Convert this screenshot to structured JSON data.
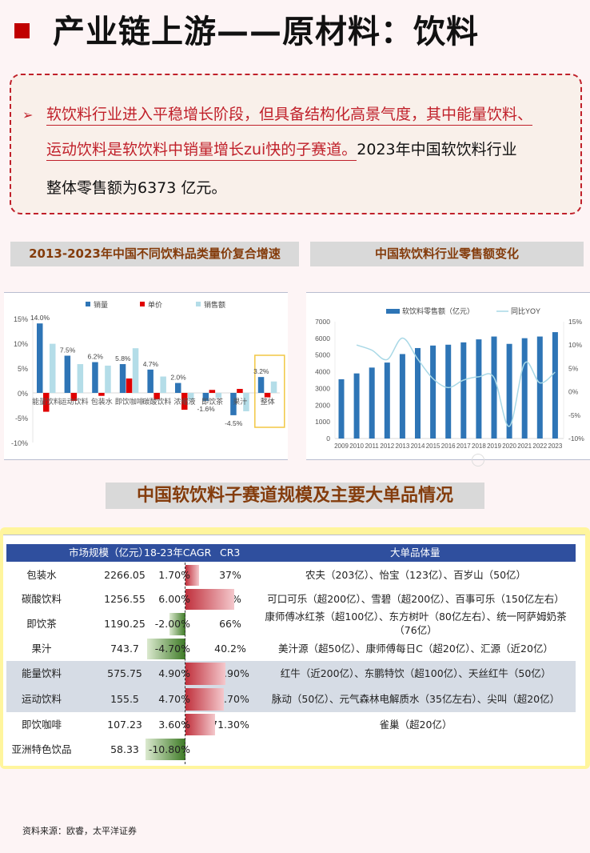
{
  "page": {
    "title": "产业链上游——原材料：饮料",
    "summary": {
      "bullet_icon": "arrow-right-icon",
      "red_line1": "软饮料行业进入平稳增长阶段，但具备结构化高景气度，其中能量饮料、",
      "red_line2": "运动饮料是软饮料中销量增长zui快的子赛道。",
      "black_line2": "2023年中国软饮料行业",
      "black_line3": "整体零售额为6373 亿元。"
    },
    "section_titles": {
      "chart1": "2013-2023年中国不同饮料品类量价复合增速",
      "chart2": "中国软饮料行业零售额变化",
      "table": "中国软饮料子赛道规模及主要大单品情况"
    },
    "source": "资料来源：欧睿，太平洋证券"
  },
  "chart_data": [
    {
      "type": "bar",
      "title": "2013-2023年中国不同饮料品类量价复合增速",
      "categories": [
        "能量饮料",
        "运动饮料",
        "包装水",
        "即饮咖啡",
        "碳酸饮料",
        "浓缩液",
        "即饮茶",
        "果汁",
        "整体"
      ],
      "series": [
        {
          "name": "销量",
          "color": "#2e75b6",
          "values": [
            14.0,
            7.5,
            6.2,
            5.8,
            4.7,
            2.0,
            -1.6,
            -4.5,
            3.2
          ]
        },
        {
          "name": "单价",
          "color": "#e00000",
          "values": [
            -3.8,
            -1.6,
            -0.6,
            2.9,
            -1.3,
            -3.4,
            0.6,
            0.8,
            -0.9
          ]
        },
        {
          "name": "销售额",
          "color": "#b4dde8",
          "values": [
            9.9,
            5.8,
            5.5,
            9.0,
            3.3,
            -1.4,
            -1.0,
            -3.7,
            2.3
          ]
        }
      ],
      "data_labels": [
        "14.0%",
        "7.5%",
        "6.2%",
        "5.8%",
        "4.7%",
        "2.0%",
        "-1.6%",
        "-4.5%",
        "3.2%"
      ],
      "yticks": [
        "15%",
        "10%",
        "5%",
        "0%",
        "-5%",
        "-10%"
      ],
      "ylim": [
        -10,
        15
      ],
      "legend_position": "top",
      "highlight": {
        "category": "整体",
        "color": "#f2c744"
      }
    },
    {
      "type": "bar+line",
      "title": "中国软饮料行业零售额变化",
      "x": [
        "2009",
        "2010",
        "2011",
        "2012",
        "2013",
        "2014",
        "2015",
        "2016",
        "2017",
        "2018",
        "2019",
        "2020",
        "2021",
        "2022",
        "2023"
      ],
      "series": [
        {
          "name": "软饮料零售额（亿元）",
          "type": "bar",
          "axis": "left",
          "color": "#2e75b6",
          "values": [
            3550,
            3900,
            4250,
            4550,
            5060,
            5420,
            5570,
            5620,
            5760,
            5940,
            6110,
            5670,
            6010,
            6110,
            6373
          ]
        },
        {
          "name": "同比YOY",
          "type": "line",
          "axis": "right",
          "color": "#a8d8e6",
          "values": [
            null,
            10.0,
            8.9,
            6.9,
            11.5,
            7.0,
            2.8,
            0.9,
            2.5,
            3.2,
            3.0,
            -7.4,
            6.1,
            1.9,
            4.2
          ]
        }
      ],
      "left_yticks": [
        "7000",
        "6000",
        "5000",
        "4000",
        "3000",
        "2000",
        "1000",
        "0"
      ],
      "right_yticks": [
        "15%",
        "10%",
        "5%",
        "0%",
        "-5%",
        "-10%"
      ],
      "ylim_left": [
        0,
        7000
      ],
      "ylim_right": [
        -10,
        15
      ],
      "legend_position": "top"
    },
    {
      "type": "table",
      "title": "中国软饮料子赛道规模及主要大单品情况",
      "headers": [
        "",
        "市场规模（亿元）",
        "18-23年CAGR",
        "CR3",
        "大单品体量"
      ],
      "rows": [
        {
          "name": "包装水",
          "size": "2266.05",
          "cagr": "1.70%",
          "cagr_value": 1.7,
          "cr3": "37%",
          "products": "农夫（203亿）、怡宝（123亿）、百岁山（50亿）",
          "highlight": false
        },
        {
          "name": "碳酸饮料",
          "size": "1256.55",
          "cagr": "6.00%",
          "cagr_value": 6.0,
          "cr3": "75%",
          "products": "可口可乐（超200亿）、雪碧（超200亿）、百事可乐（150亿左右）",
          "highlight": false
        },
        {
          "name": "即饮茶",
          "size": "1190.25",
          "cagr": "-2.00%",
          "cagr_value": -2.0,
          "cr3": "66%",
          "products": "康师傅冰红茶（超100亿）、东方树叶（80亿左右）、统一阿萨姆奶茶",
          "products_line2": "（76亿）",
          "highlight": false
        },
        {
          "name": "果汁",
          "size": "743.7",
          "cagr": "-4.70%",
          "cagr_value": -4.7,
          "cr3": "40.2%",
          "products": "美汁源（超50亿）、康师傅每日C（超20亿）、汇源（近20亿）",
          "highlight": false
        },
        {
          "name": "能量饮料",
          "size": "575.75",
          "cagr": "4.90%",
          "cagr_value": 4.9,
          "cr3": "68.90%",
          "products": "红牛（近200亿）、东鹏特饮（超100亿）、天丝红牛（50亿）",
          "highlight": true
        },
        {
          "name": "运动饮料",
          "size": "155.5",
          "cagr": "4.70%",
          "cagr_value": 4.7,
          "cr3": "43.70%",
          "products": "脉动（50亿）、元气森林电解质水（35亿左右）、尖叫（超20亿）",
          "highlight": true
        },
        {
          "name": "即饮咖啡",
          "size": "107.23",
          "cagr": "3.60%",
          "cagr_value": 3.6,
          "cr3": "71.30%",
          "products": "雀巢（超20亿）",
          "highlight": false
        },
        {
          "name": "亚洲特色饮品",
          "size": "58.33",
          "cagr": "-10.80%",
          "cagr_value": -10.8,
          "cr3": "",
          "products": "",
          "highlight": false
        }
      ]
    }
  ]
}
